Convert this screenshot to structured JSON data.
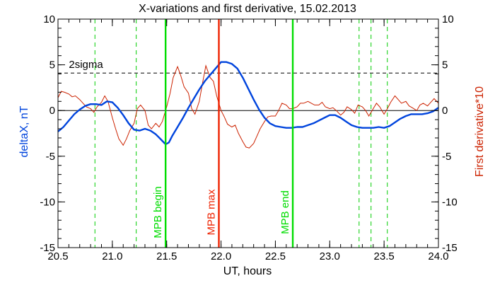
{
  "chart_data": {
    "type": "line",
    "title": "X-variations and first derivative, 15.02.2013",
    "xlabel": "UT, hours",
    "ylabel_left": "deltaX, nT",
    "ylabel_right": "First derivative*10",
    "xlim": [
      20.5,
      24.0
    ],
    "ylim": [
      -15,
      10
    ],
    "x_ticks": [
      "20.5",
      "21.0",
      "21.5",
      "22.0",
      "22.5",
      "23.0",
      "23.5",
      "24.0"
    ],
    "y_ticks_left": [
      "10",
      "5",
      "0",
      "-5",
      "-10",
      "-15"
    ],
    "y_ticks_right": [
      "10",
      "5",
      "0",
      "-5",
      "-10",
      "-15"
    ],
    "colors": {
      "deltaX": "#0044dd",
      "derivative": "#cc2200",
      "mpb": "#00dd00",
      "mpb_max": "#ee2200",
      "dashed_markers": "#00cc00",
      "axis": "#000000"
    },
    "sigma_label": "2sigma",
    "sigma_level": 4.1,
    "zero_line": 0,
    "annotations": [
      {
        "label": "MPB begin",
        "x": 21.49,
        "kind": "mpb"
      },
      {
        "label": "MPB max",
        "x": 21.98,
        "kind": "mpb_max"
      },
      {
        "label": "MPB end",
        "x": 22.66,
        "kind": "mpb"
      }
    ],
    "dashed_markers_x": [
      20.84,
      21.22,
      23.27,
      23.38,
      23.53
    ],
    "series": [
      {
        "name": "deltaX",
        "points": [
          [
            20.5,
            -2.3
          ],
          [
            20.55,
            -1.8
          ],
          [
            20.6,
            -1.1
          ],
          [
            20.65,
            -0.4
          ],
          [
            20.7,
            0.1
          ],
          [
            20.75,
            0.5
          ],
          [
            20.8,
            0.7
          ],
          [
            20.85,
            0.7
          ],
          [
            20.9,
            0.6
          ],
          [
            20.95,
            1.0
          ],
          [
            21.0,
            0.9
          ],
          [
            21.05,
            0.3
          ],
          [
            21.1,
            -0.5
          ],
          [
            21.15,
            -1.4
          ],
          [
            21.2,
            -2.1
          ],
          [
            21.25,
            -2.2
          ],
          [
            21.3,
            -2.0
          ],
          [
            21.35,
            -2.2
          ],
          [
            21.4,
            -2.6
          ],
          [
            21.45,
            -3.2
          ],
          [
            21.49,
            -3.7
          ],
          [
            21.52,
            -3.5
          ],
          [
            21.55,
            -2.8
          ],
          [
            21.6,
            -1.8
          ],
          [
            21.65,
            -0.8
          ],
          [
            21.7,
            0.3
          ],
          [
            21.75,
            1.3
          ],
          [
            21.8,
            2.3
          ],
          [
            21.85,
            3.2
          ],
          [
            21.9,
            3.9
          ],
          [
            21.95,
            4.6
          ],
          [
            22.0,
            5.3
          ],
          [
            22.05,
            5.3
          ],
          [
            22.1,
            5.1
          ],
          [
            22.15,
            4.6
          ],
          [
            22.2,
            3.6
          ],
          [
            22.25,
            2.4
          ],
          [
            22.3,
            1.2
          ],
          [
            22.35,
            0.1
          ],
          [
            22.4,
            -0.8
          ],
          [
            22.45,
            -1.4
          ],
          [
            22.5,
            -1.7
          ],
          [
            22.55,
            -1.8
          ],
          [
            22.6,
            -1.9
          ],
          [
            22.65,
            -1.9
          ],
          [
            22.7,
            -1.8
          ],
          [
            22.75,
            -1.8
          ],
          [
            22.8,
            -1.6
          ],
          [
            22.85,
            -1.4
          ],
          [
            22.9,
            -1.1
          ],
          [
            22.95,
            -0.8
          ],
          [
            23.0,
            -0.5
          ],
          [
            23.05,
            -0.5
          ],
          [
            23.1,
            -0.8
          ],
          [
            23.15,
            -1.2
          ],
          [
            23.2,
            -1.6
          ],
          [
            23.25,
            -1.8
          ],
          [
            23.3,
            -1.9
          ],
          [
            23.35,
            -1.9
          ],
          [
            23.4,
            -1.9
          ],
          [
            23.45,
            -1.8
          ],
          [
            23.5,
            -1.9
          ],
          [
            23.55,
            -1.7
          ],
          [
            23.6,
            -1.3
          ],
          [
            23.65,
            -0.9
          ],
          [
            23.7,
            -0.6
          ],
          [
            23.75,
            -0.4
          ],
          [
            23.8,
            -0.4
          ],
          [
            23.85,
            -0.4
          ],
          [
            23.9,
            -0.3
          ],
          [
            23.95,
            -0.1
          ],
          [
            24.0,
            0.3
          ]
        ]
      },
      {
        "name": "derivative",
        "points": [
          [
            20.5,
            1.4
          ],
          [
            20.53,
            2.1
          ],
          [
            20.56,
            2.0
          ],
          [
            20.6,
            1.8
          ],
          [
            20.63,
            1.5
          ],
          [
            20.66,
            1.6
          ],
          [
            20.7,
            1.2
          ],
          [
            20.73,
            0.8
          ],
          [
            20.76,
            0.4
          ],
          [
            20.8,
            0.2
          ],
          [
            20.83,
            -0.2
          ],
          [
            20.86,
            0.4
          ],
          [
            20.9,
            0.9
          ],
          [
            20.93,
            1.6
          ],
          [
            20.96,
            1.0
          ],
          [
            21.0,
            -0.8
          ],
          [
            21.03,
            -2.0
          ],
          [
            21.06,
            -3.1
          ],
          [
            21.1,
            -3.8
          ],
          [
            21.13,
            -3.1
          ],
          [
            21.16,
            -2.2
          ],
          [
            21.2,
            -1.4
          ],
          [
            21.23,
            0.2
          ],
          [
            21.26,
            0.6
          ],
          [
            21.3,
            0.0
          ],
          [
            21.33,
            -1.6
          ],
          [
            21.36,
            -2.0
          ],
          [
            21.4,
            -1.4
          ],
          [
            21.43,
            -1.8
          ],
          [
            21.46,
            -1.2
          ],
          [
            21.5,
            0.4
          ],
          [
            21.53,
            1.8
          ],
          [
            21.56,
            3.6
          ],
          [
            21.6,
            4.8
          ],
          [
            21.63,
            3.8
          ],
          [
            21.66,
            2.6
          ],
          [
            21.7,
            1.9
          ],
          [
            21.73,
            0.2
          ],
          [
            21.76,
            -0.4
          ],
          [
            21.8,
            1.0
          ],
          [
            21.83,
            3.0
          ],
          [
            21.86,
            4.9
          ],
          [
            21.9,
            3.6
          ],
          [
            21.93,
            3.2
          ],
          [
            21.96,
            1.6
          ],
          [
            22.0,
            0.0
          ],
          [
            22.03,
            -0.7
          ],
          [
            22.06,
            -1.5
          ],
          [
            22.1,
            -1.8
          ],
          [
            22.13,
            -1.6
          ],
          [
            22.16,
            -2.5
          ],
          [
            22.2,
            -3.4
          ],
          [
            22.23,
            -4.0
          ],
          [
            22.26,
            -4.1
          ],
          [
            22.3,
            -3.6
          ],
          [
            22.33,
            -2.8
          ],
          [
            22.36,
            -2.0
          ],
          [
            22.4,
            -1.2
          ],
          [
            22.43,
            -0.7
          ],
          [
            22.46,
            -0.6
          ],
          [
            22.5,
            -0.6
          ],
          [
            22.53,
            0.0
          ],
          [
            22.56,
            0.8
          ],
          [
            22.6,
            0.6
          ],
          [
            22.63,
            0.2
          ],
          [
            22.66,
            0.2
          ],
          [
            22.7,
            0.4
          ],
          [
            22.73,
            0.8
          ],
          [
            22.76,
            0.8
          ],
          [
            22.8,
            1.0
          ],
          [
            22.83,
            0.8
          ],
          [
            22.86,
            0.6
          ],
          [
            22.9,
            0.6
          ],
          [
            22.93,
            0.9
          ],
          [
            22.96,
            0.4
          ],
          [
            23.0,
            0.2
          ],
          [
            23.03,
            0.3
          ],
          [
            23.06,
            0.0
          ],
          [
            23.1,
            -0.5
          ],
          [
            23.13,
            -0.2
          ],
          [
            23.16,
            0.4
          ],
          [
            23.2,
            0.1
          ],
          [
            23.23,
            -0.3
          ],
          [
            23.26,
            0.6
          ],
          [
            23.3,
            0.4
          ],
          [
            23.33,
            0.0
          ],
          [
            23.36,
            -0.6
          ],
          [
            23.4,
            0.2
          ],
          [
            23.43,
            0.8
          ],
          [
            23.46,
            0.4
          ],
          [
            23.5,
            -0.4
          ],
          [
            23.53,
            0.2
          ],
          [
            23.56,
            0.9
          ],
          [
            23.6,
            1.6
          ],
          [
            23.63,
            1.2
          ],
          [
            23.66,
            0.8
          ],
          [
            23.7,
            1.0
          ],
          [
            23.73,
            0.5
          ],
          [
            23.76,
            0.3
          ],
          [
            23.8,
            0.0
          ],
          [
            23.83,
            0.6
          ],
          [
            23.86,
            0.8
          ],
          [
            23.9,
            0.5
          ],
          [
            23.93,
            0.9
          ],
          [
            23.96,
            1.3
          ],
          [
            24.0,
            0.8
          ]
        ]
      }
    ]
  }
}
